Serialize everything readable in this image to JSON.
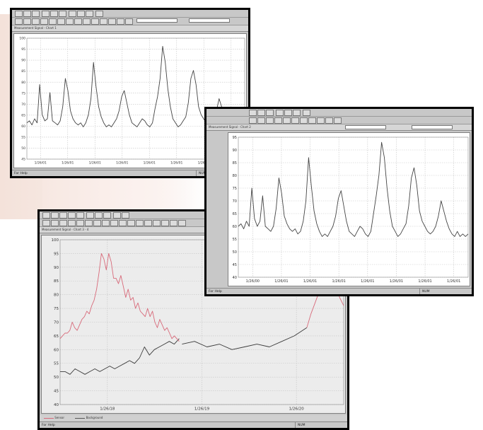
{
  "windows": [
    {
      "id": "w1",
      "title_label": "Measurement Signal - Chart 1",
      "status_left": "For Help",
      "status_right": "NUM",
      "chart_data": {
        "type": "line",
        "ylim": [
          40,
          100
        ],
        "y_ticks": [
          "100",
          "95",
          "90",
          "85",
          "80",
          "75",
          "70",
          "65",
          "60",
          "55",
          "50",
          "45"
        ],
        "x_ticks": [
          "1/26/01",
          "1/26/01",
          "1/26/01",
          "1/26/01",
          "1/26/01",
          "1/26/01",
          "1/26/01",
          "1/26/01"
        ],
        "series": [
          {
            "color": "#444444",
            "values": [
              58,
              59,
              57,
              60,
              58,
              77,
              62,
              59,
              60,
              73,
              59,
              58,
              57,
              59,
              66,
              80,
              74,
              64,
              60,
              58,
              57,
              58,
              56,
              58,
              62,
              70,
              88,
              76,
              66,
              61,
              58,
              56,
              57,
              56,
              58,
              60,
              64,
              71,
              74,
              68,
              62,
              58,
              57,
              56,
              58,
              60,
              59,
              57,
              56,
              58,
              65,
              71,
              80,
              96,
              88,
              75,
              66,
              60,
              58,
              56,
              57,
              59,
              61,
              68,
              80,
              84,
              77,
              66,
              62,
              60,
              58,
              57,
              58,
              60,
              64,
              70,
              66,
              62,
              59,
              57,
              56,
              58,
              56,
              57,
              56,
              57
            ]
          }
        ]
      }
    },
    {
      "id": "w2",
      "title_label": "Measurement Signal - Chart 2",
      "status_left": "For Help",
      "status_right": "NUM",
      "chart_data": {
        "type": "line",
        "ylim": [
          40,
          95
        ],
        "y_ticks": [
          "95",
          "90",
          "85",
          "80",
          "75",
          "70",
          "65",
          "60",
          "55",
          "50",
          "45",
          "40"
        ],
        "x_ticks": [
          "1/26/00",
          "1/26/01",
          "1/26/01",
          "1/26/01",
          "1/26/01",
          "1/26/01",
          "1/26/01",
          "1/26/01"
        ],
        "series": [
          {
            "color": "#444444",
            "values": [
              60,
              61,
              59,
              62,
              60,
              75,
              63,
              60,
              62,
              72,
              60,
              59,
              58,
              60,
              67,
              79,
              73,
              64,
              61,
              59,
              58,
              59,
              57,
              58,
              62,
              70,
              87,
              76,
              66,
              61,
              58,
              56,
              57,
              56,
              58,
              60,
              64,
              71,
              74,
              68,
              62,
              58,
              57,
              56,
              58,
              60,
              59,
              57,
              56,
              58,
              65,
              72,
              80,
              93,
              87,
              75,
              66,
              60,
              58,
              56,
              57,
              59,
              61,
              68,
              79,
              83,
              76,
              66,
              62,
              60,
              58,
              57,
              58,
              60,
              64,
              70,
              66,
              62,
              59,
              57,
              56,
              58,
              56,
              57,
              56,
              57
            ]
          }
        ]
      }
    },
    {
      "id": "w3",
      "title_label": "Measurement Signal - Chart 3 - 4",
      "status_left": "For Help",
      "status_right": "NUM",
      "legend": [
        {
          "label": "Sensor",
          "color": "#d86a7a"
        },
        {
          "label": "Background",
          "color": "#555555"
        }
      ],
      "chart_data": {
        "type": "line",
        "ylim": [
          40,
          100
        ],
        "y_ticks": [
          "100",
          "95",
          "90",
          "85",
          "80",
          "75",
          "70",
          "65",
          "60",
          "55",
          "50",
          "45",
          "40"
        ],
        "x_ticks": [
          "1/26/18",
          "1/26/19",
          "1/26/20"
        ],
        "series": [
          {
            "name": "Background",
            "color": "#3a3a3a",
            "values": [
              52,
              52,
              51,
              53,
              52,
              51,
              52,
              53,
              52,
              53,
              54,
              53,
              54,
              55,
              56,
              55,
              57,
              61,
              58,
              60,
              61,
              62,
              63,
              62,
              64
            ]
          },
          {
            "name": "Sensor",
            "color": "#d86a7a",
            "values": [
              64,
              65,
              66,
              66,
              67,
              70,
              68,
              67,
              69,
              71,
              72,
              74,
              73,
              76,
              78,
              82,
              88,
              95,
              93,
              89,
              95,
              92,
              86,
              86,
              84,
              87,
              83,
              79,
              82,
              78,
              79,
              75,
              77,
              74,
              73,
              72,
              75,
              72,
              74,
              70,
              68,
              71,
              69,
              67,
              68,
              66,
              64,
              65,
              64,
              63
            ]
          },
          {
            "name": "Background",
            "color": "#3a3a3a",
            "values": [
              62,
              63,
              61,
              62,
              60,
              61,
              62,
              61,
              63,
              65,
              68
            ]
          },
          {
            "name": "Sensor",
            "color": "#d86a7a",
            "values": [
              68,
              73,
              77,
              81,
              82,
              80,
              82,
              84,
              79,
              76
            ]
          }
        ]
      }
    }
  ]
}
